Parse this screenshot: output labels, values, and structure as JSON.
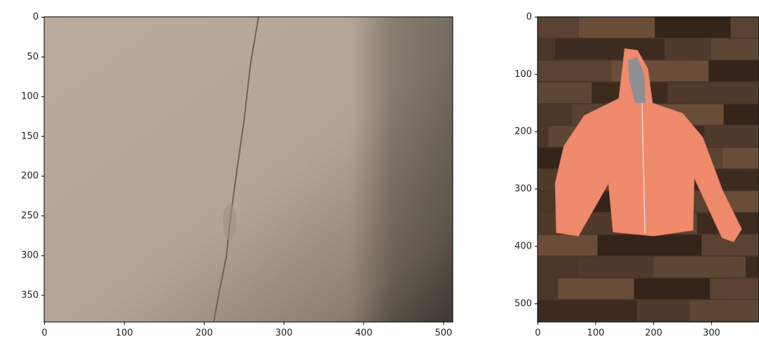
{
  "chart_data": [
    {
      "type": "image",
      "xlim": [
        -0.5,
        511.5
      ],
      "ylim": [
        383.5,
        -0.5
      ],
      "xticks": [
        0,
        100,
        200,
        300,
        400,
        500
      ],
      "yticks": [
        0,
        50,
        100,
        150,
        200,
        250,
        300,
        350
      ]
    },
    {
      "type": "image",
      "xlim": [
        -0.5,
        382
      ],
      "ylim": [
        532,
        -0.5
      ],
      "xticks": [
        0,
        100,
        200,
        300
      ],
      "yticks": [
        0,
        100,
        200,
        300,
        400,
        500
      ]
    }
  ]
}
